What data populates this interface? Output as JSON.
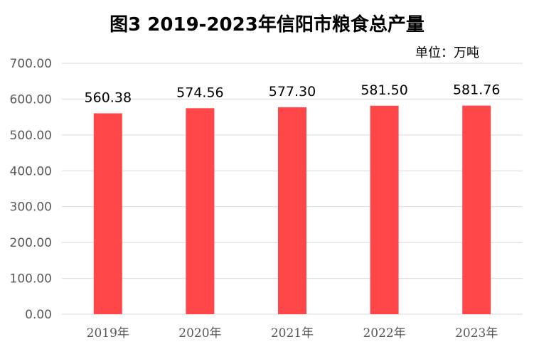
{
  "chart_data": {
    "type": "bar",
    "title": "图3  2019-2023年信阳市粮食总产量",
    "unit_label": "单位：万吨",
    "categories": [
      "2019年",
      "2020年",
      "2021年",
      "2022年",
      "2023年"
    ],
    "values": [
      560.38,
      574.56,
      577.3,
      581.5,
      581.76
    ],
    "data_labels": [
      "560.38",
      "574.56",
      "577.30",
      "581.50",
      "581.76"
    ],
    "y_ticks": [
      "0.00",
      "100.00",
      "200.00",
      "300.00",
      "400.00",
      "500.00",
      "600.00",
      "700.00"
    ],
    "ylim": [
      0,
      700
    ],
    "grid": true,
    "legend": "none",
    "bar_color": "#ff474a",
    "grid_color": "#d9d9d9"
  }
}
